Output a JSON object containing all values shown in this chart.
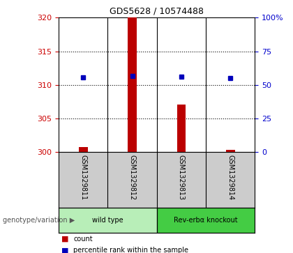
{
  "title": "GDS5628 / 10574488",
  "samples": [
    "GSM1329811",
    "GSM1329812",
    "GSM1329813",
    "GSM1329814"
  ],
  "count_values": [
    300.7,
    320.0,
    307.0,
    300.3
  ],
  "percentile_values": [
    55.5,
    56.5,
    56.0,
    55.0
  ],
  "left_ylim": [
    300,
    320
  ],
  "left_yticks": [
    300,
    305,
    310,
    315,
    320
  ],
  "right_ylim": [
    0,
    100
  ],
  "right_yticks": [
    0,
    25,
    50,
    75,
    100
  ],
  "right_yticklabels": [
    "0",
    "25",
    "50",
    "75",
    "100%"
  ],
  "bar_color": "#bb0000",
  "dot_color": "#0000bb",
  "groups": [
    {
      "label": "wild type",
      "samples": [
        0,
        1
      ],
      "color": "#b8eeb8"
    },
    {
      "label": "Rev-erbα knockout",
      "samples": [
        2,
        3
      ],
      "color": "#44cc44"
    }
  ],
  "group_label": "genotype/variation",
  "legend_items": [
    {
      "color": "#bb0000",
      "label": "count"
    },
    {
      "color": "#0000bb",
      "label": "percentile rank within the sample"
    }
  ],
  "bar_width": 0.18,
  "left_axis_color": "#cc0000",
  "right_axis_color": "#0000cc",
  "bg_color": "#ffffff",
  "label_area_color": "#cccccc",
  "dotted_yticks": [
    305,
    310,
    315
  ]
}
